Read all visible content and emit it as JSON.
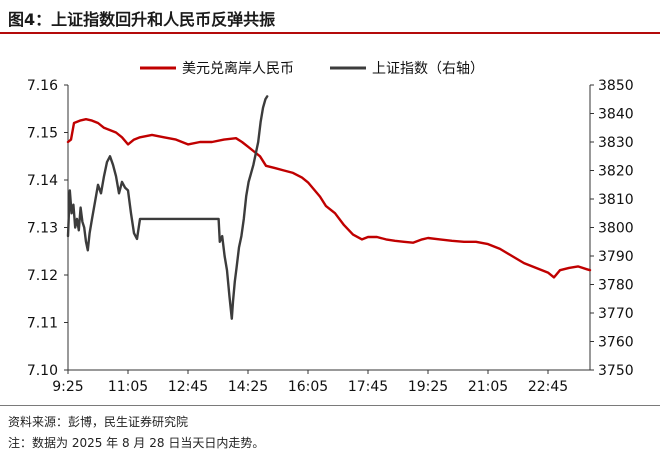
{
  "figure": {
    "title": "图4：上证指数回升和人民币反弹共振",
    "source": "资料来源：彭博，民生证券研究院",
    "note": "注：数据为 2025 年 8 月 28 日当天日内走势。"
  },
  "chart_data": {
    "type": "line",
    "title": "图4：上证指数回升和人民币反弹共振",
    "legend_position": "top",
    "grid": false,
    "x_ticks": [
      "9:25",
      "11:05",
      "12:45",
      "14:25",
      "16:05",
      "17:45",
      "19:25",
      "21:05",
      "22:45"
    ],
    "x_range": [
      "9:25",
      "23:55"
    ],
    "y_left": {
      "range": [
        7.1,
        7.16
      ],
      "ticks": [
        "7.10",
        "7.11",
        "7.12",
        "7.13",
        "7.14",
        "7.15",
        "7.16"
      ]
    },
    "y_right": {
      "range": [
        3750,
        3850
      ],
      "ticks": [
        "3750",
        "3760",
        "3770",
        "3780",
        "3790",
        "3800",
        "3810",
        "3820",
        "3830",
        "3840",
        "3850"
      ]
    },
    "series": [
      {
        "name": "美元兑离岸人民币",
        "axis": "left",
        "color": "#c00000",
        "points": [
          [
            "9:25",
            7.148
          ],
          [
            "9:30",
            7.1485
          ],
          [
            "9:35",
            7.152
          ],
          [
            "9:45",
            7.1525
          ],
          [
            "9:55",
            7.1528
          ],
          [
            "10:05",
            7.1525
          ],
          [
            "10:15",
            7.152
          ],
          [
            "10:25",
            7.151
          ],
          [
            "10:35",
            7.1505
          ],
          [
            "10:45",
            7.15
          ],
          [
            "10:55",
            7.149
          ],
          [
            "11:05",
            7.1475
          ],
          [
            "11:15",
            7.1485
          ],
          [
            "11:25",
            7.149
          ],
          [
            "11:45",
            7.1495
          ],
          [
            "12:05",
            7.149
          ],
          [
            "12:25",
            7.1485
          ],
          [
            "12:45",
            7.1475
          ],
          [
            "13:05",
            7.148
          ],
          [
            "13:25",
            7.148
          ],
          [
            "13:45",
            7.1485
          ],
          [
            "14:05",
            7.1488
          ],
          [
            "14:15",
            7.148
          ],
          [
            "14:25",
            7.147
          ],
          [
            "14:35",
            7.146
          ],
          [
            "14:45",
            7.145
          ],
          [
            "14:55",
            7.143
          ],
          [
            "15:10",
            7.1425
          ],
          [
            "15:25",
            7.142
          ],
          [
            "15:40",
            7.1415
          ],
          [
            "15:55",
            7.1405
          ],
          [
            "16:05",
            7.1395
          ],
          [
            "16:15",
            7.138
          ],
          [
            "16:25",
            7.1365
          ],
          [
            "16:35",
            7.1345
          ],
          [
            "16:50",
            7.133
          ],
          [
            "17:05",
            7.1305
          ],
          [
            "17:20",
            7.1285
          ],
          [
            "17:35",
            7.1275
          ],
          [
            "17:45",
            7.128
          ],
          [
            "18:00",
            7.128
          ],
          [
            "18:15",
            7.1275
          ],
          [
            "18:30",
            7.1272
          ],
          [
            "18:45",
            7.127
          ],
          [
            "19:00",
            7.1268
          ],
          [
            "19:15",
            7.1275
          ],
          [
            "19:25",
            7.1278
          ],
          [
            "19:45",
            7.1275
          ],
          [
            "20:05",
            7.1272
          ],
          [
            "20:25",
            7.127
          ],
          [
            "20:45",
            7.127
          ],
          [
            "21:05",
            7.1265
          ],
          [
            "21:25",
            7.1255
          ],
          [
            "21:45",
            7.124
          ],
          [
            "22:05",
            7.1225
          ],
          [
            "22:25",
            7.1215
          ],
          [
            "22:45",
            7.1205
          ],
          [
            "22:55",
            7.1195
          ],
          [
            "23:05",
            7.121
          ],
          [
            "23:20",
            7.1215
          ],
          [
            "23:35",
            7.1218
          ],
          [
            "23:50",
            7.1212
          ],
          [
            "23:55",
            7.121
          ]
        ]
      },
      {
        "name": "上证指数（右轴）",
        "axis": "right",
        "color": "#3c3c3c",
        "points": [
          [
            "9:25",
            3797
          ],
          [
            "9:28",
            3813
          ],
          [
            "9:31",
            3805
          ],
          [
            "9:34",
            3808
          ],
          [
            "9:37",
            3800
          ],
          [
            "9:40",
            3803
          ],
          [
            "9:43",
            3799
          ],
          [
            "9:46",
            3807
          ],
          [
            "9:49",
            3802
          ],
          [
            "9:52",
            3800
          ],
          [
            "9:55",
            3795
          ],
          [
            "9:58",
            3792
          ],
          [
            "10:01",
            3798
          ],
          [
            "10:05",
            3803
          ],
          [
            "10:10",
            3809
          ],
          [
            "10:15",
            3815
          ],
          [
            "10:20",
            3812
          ],
          [
            "10:25",
            3818
          ],
          [
            "10:30",
            3823
          ],
          [
            "10:35",
            3825
          ],
          [
            "10:40",
            3822
          ],
          [
            "10:45",
            3818
          ],
          [
            "10:50",
            3812
          ],
          [
            "10:55",
            3816
          ],
          [
            "11:00",
            3814
          ],
          [
            "11:05",
            3813
          ],
          [
            "11:10",
            3805
          ],
          [
            "11:15",
            3798
          ],
          [
            "11:20",
            3796
          ],
          [
            "11:25",
            3803
          ],
          [
            "11:30",
            3803
          ],
          [
            "12:00",
            3803
          ],
          [
            "12:30",
            3803
          ],
          [
            "13:00",
            3803
          ],
          [
            "13:30",
            3803
          ],
          [
            "13:36",
            3803
          ],
          [
            "13:38",
            3795
          ],
          [
            "13:42",
            3797
          ],
          [
            "13:46",
            3790
          ],
          [
            "13:50",
            3785
          ],
          [
            "13:54",
            3776
          ],
          [
            "13:58",
            3768
          ],
          [
            "14:00",
            3774
          ],
          [
            "14:03",
            3781
          ],
          [
            "14:06",
            3786
          ],
          [
            "14:10",
            3793
          ],
          [
            "14:14",
            3797
          ],
          [
            "14:18",
            3803
          ],
          [
            "14:22",
            3811
          ],
          [
            "14:26",
            3816
          ],
          [
            "14:30",
            3819
          ],
          [
            "14:34",
            3822
          ],
          [
            "14:38",
            3826
          ],
          [
            "14:42",
            3830
          ],
          [
            "14:46",
            3837
          ],
          [
            "14:50",
            3842
          ],
          [
            "14:54",
            3845
          ],
          [
            "14:57",
            3846
          ]
        ]
      }
    ]
  }
}
